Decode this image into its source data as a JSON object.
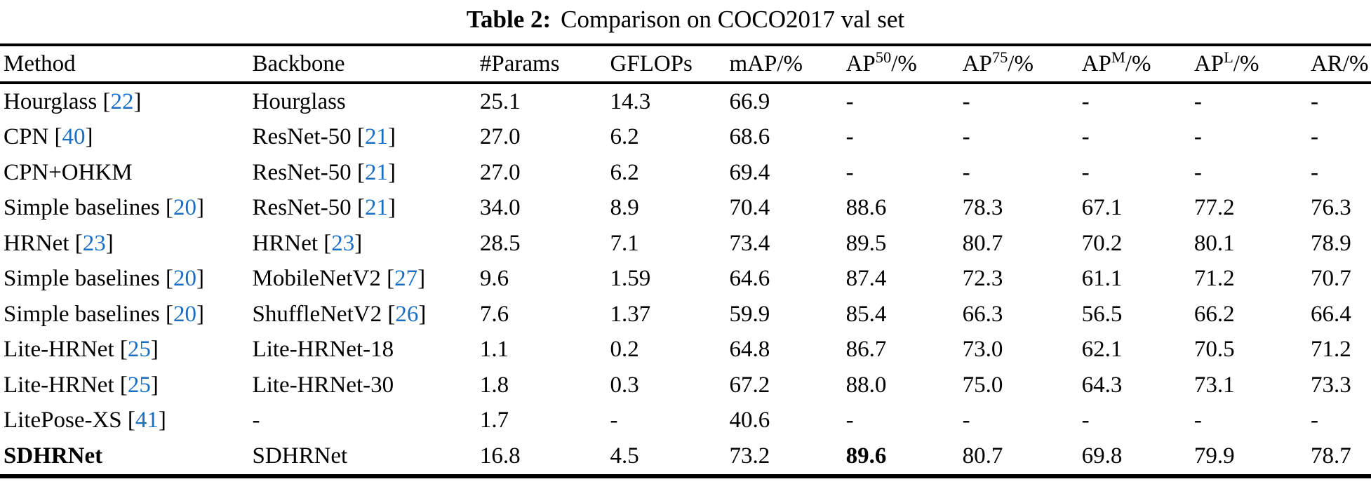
{
  "caption": {
    "label": "Table 2:",
    "text": "Comparison on COCO2017 val set"
  },
  "colors": {
    "citation_blue": "#1a6fc4",
    "text": "#000000",
    "background": "#ffffff"
  },
  "chart_data": {
    "type": "table",
    "title": "Table 2: Comparison on COCO2017 val set",
    "columns": [
      {
        "label": "Method"
      },
      {
        "label": "Backbone"
      },
      {
        "label": "#Params"
      },
      {
        "label": "GFLOPs"
      },
      {
        "label": "mAP",
        "suffix": "/%"
      },
      {
        "label": "AP",
        "sup": "50",
        "suffix": "/%"
      },
      {
        "label": "AP",
        "sup": "75",
        "suffix": "/%"
      },
      {
        "label": "AP",
        "sup": "M",
        "suffix": "/%"
      },
      {
        "label": "AP",
        "sup": "L",
        "suffix": "/%"
      },
      {
        "label": "AR",
        "suffix": "/%"
      }
    ],
    "rows": [
      {
        "method": {
          "text": "Hourglass",
          "cite": "22",
          "bold": false
        },
        "backbone": {
          "text": "Hourglass",
          "cite": null
        },
        "values": [
          "25.1",
          "14.3",
          "66.9",
          "-",
          "-",
          "-",
          "-",
          "-"
        ],
        "bold_value_indices": []
      },
      {
        "method": {
          "text": "CPN",
          "cite": "40",
          "bold": false
        },
        "backbone": {
          "text": "ResNet-50",
          "cite": "21"
        },
        "values": [
          "27.0",
          "6.2",
          "68.6",
          "-",
          "-",
          "-",
          "-",
          "-"
        ],
        "bold_value_indices": []
      },
      {
        "method": {
          "text": "CPN+OHKM",
          "cite": null,
          "bold": false
        },
        "backbone": {
          "text": "ResNet-50",
          "cite": "21"
        },
        "values": [
          "27.0",
          "6.2",
          "69.4",
          "-",
          "-",
          "-",
          "-",
          "-"
        ],
        "bold_value_indices": []
      },
      {
        "method": {
          "text": "Simple baselines",
          "cite": "20",
          "bold": false
        },
        "backbone": {
          "text": "ResNet-50",
          "cite": "21"
        },
        "values": [
          "34.0",
          "8.9",
          "70.4",
          "88.6",
          "78.3",
          "67.1",
          "77.2",
          "76.3"
        ],
        "bold_value_indices": []
      },
      {
        "method": {
          "text": "HRNet",
          "cite": "23",
          "bold": false
        },
        "backbone": {
          "text": "HRNet",
          "cite": "23"
        },
        "values": [
          "28.5",
          "7.1",
          "73.4",
          "89.5",
          "80.7",
          "70.2",
          "80.1",
          "78.9"
        ],
        "bold_value_indices": []
      },
      {
        "method": {
          "text": "Simple baselines",
          "cite": "20",
          "bold": false
        },
        "backbone": {
          "text": "MobileNetV2",
          "cite": "27"
        },
        "values": [
          "9.6",
          "1.59",
          "64.6",
          "87.4",
          "72.3",
          "61.1",
          "71.2",
          "70.7"
        ],
        "bold_value_indices": []
      },
      {
        "method": {
          "text": "Simple baselines",
          "cite": "20",
          "bold": false
        },
        "backbone": {
          "text": "ShuffleNetV2",
          "cite": "26"
        },
        "values": [
          "7.6",
          "1.37",
          "59.9",
          "85.4",
          "66.3",
          "56.5",
          "66.2",
          "66.4"
        ],
        "bold_value_indices": []
      },
      {
        "method": {
          "text": "Lite-HRNet",
          "cite": "25",
          "bold": false
        },
        "backbone": {
          "text": "Lite-HRNet-18",
          "cite": null
        },
        "values": [
          "1.1",
          "0.2",
          "64.8",
          "86.7",
          "73.0",
          "62.1",
          "70.5",
          "71.2"
        ],
        "bold_value_indices": []
      },
      {
        "method": {
          "text": "Lite-HRNet",
          "cite": "25",
          "bold": false
        },
        "backbone": {
          "text": "Lite-HRNet-30",
          "cite": null
        },
        "values": [
          "1.8",
          "0.3",
          "67.2",
          "88.0",
          "75.0",
          "64.3",
          "73.1",
          "73.3"
        ],
        "bold_value_indices": []
      },
      {
        "method": {
          "text": "LitePose-XS",
          "cite": "41",
          "bold": false
        },
        "backbone": {
          "text": "-",
          "cite": null
        },
        "values": [
          "1.7",
          "-",
          "40.6",
          "-",
          "-",
          "-",
          "-",
          "-"
        ],
        "bold_value_indices": []
      },
      {
        "method": {
          "text": "SDHRNet",
          "cite": null,
          "bold": true
        },
        "backbone": {
          "text": "SDHRNet",
          "cite": null
        },
        "values": [
          "16.8",
          "4.5",
          "73.2",
          "89.6",
          "80.7",
          "69.8",
          "79.9",
          "78.7"
        ],
        "bold_value_indices": [
          3
        ]
      }
    ]
  }
}
